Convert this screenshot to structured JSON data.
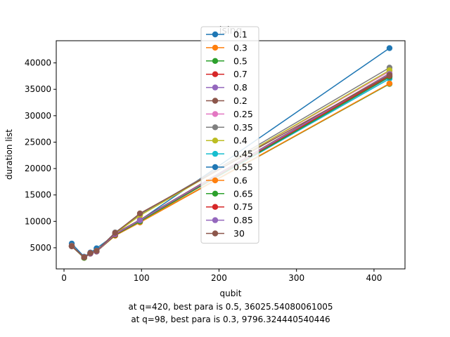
{
  "chart_data": {
    "type": "line",
    "title": "ising",
    "xlabel": "qubit",
    "ylabel": "duration list",
    "xlim": [
      -10,
      440
    ],
    "ylim": [
      1000,
      44200
    ],
    "xticks": [
      0,
      100,
      200,
      300,
      400
    ],
    "yticks": [
      5000,
      10000,
      15000,
      20000,
      25000,
      30000,
      35000,
      40000
    ],
    "grid": false,
    "legend_position": "top-center",
    "x": [
      10,
      26,
      34,
      42,
      66,
      98,
      420
    ],
    "series": [
      {
        "name": "0.1",
        "color": "#1f77b4",
        "values": [
          5800,
          3300,
          4100,
          4900,
          7500,
          10200,
          42800
        ]
      },
      {
        "name": "0.3",
        "color": "#ff7f0e",
        "values": [
          5300,
          3100,
          3900,
          4300,
          7300,
          9800,
          36050
        ]
      },
      {
        "name": "0.5",
        "color": "#2ca02c",
        "values": [
          5300,
          3100,
          3900,
          4300,
          7400,
          9900,
          36025
        ]
      },
      {
        "name": "0.7",
        "color": "#d62728",
        "values": [
          5300,
          3200,
          3900,
          4300,
          7500,
          10100,
          37500
        ]
      },
      {
        "name": "0.8",
        "color": "#9467bd",
        "values": [
          5300,
          3200,
          3900,
          4300,
          7600,
          10200,
          37800
        ]
      },
      {
        "name": "0.2",
        "color": "#8c564b",
        "values": [
          5400,
          3200,
          4000,
          4400,
          7700,
          10300,
          38000
        ]
      },
      {
        "name": "0.25",
        "color": "#e377c2",
        "values": [
          5300,
          3200,
          4000,
          4400,
          7800,
          11200,
          38400
        ]
      },
      {
        "name": "0.35",
        "color": "#7f7f7f",
        "values": [
          5400,
          3200,
          4000,
          4400,
          7900,
          11300,
          39100
        ]
      },
      {
        "name": "0.4",
        "color": "#bcbd22",
        "values": [
          5300,
          3200,
          3900,
          4400,
          7700,
          11100,
          38600
        ]
      },
      {
        "name": "0.45",
        "color": "#17becf",
        "values": [
          5300,
          3200,
          3900,
          4300,
          7500,
          10100,
          37000
        ]
      },
      {
        "name": "0.55",
        "color": "#1f77b4",
        "values": [
          5300,
          3200,
          3900,
          4300,
          7400,
          10000,
          37300
        ]
      },
      {
        "name": "0.6",
        "color": "#ff7f0e",
        "values": [
          5300,
          3100,
          3900,
          4300,
          7300,
          9900,
          36100
        ]
      },
      {
        "name": "0.65",
        "color": "#2ca02c",
        "values": [
          5300,
          3100,
          3900,
          4300,
          7400,
          10000,
          37400
        ]
      },
      {
        "name": "0.75",
        "color": "#d62728",
        "values": [
          5300,
          3200,
          3900,
          4300,
          7500,
          10200,
          37600
        ]
      },
      {
        "name": "0.85",
        "color": "#9467bd",
        "values": [
          5300,
          3200,
          3900,
          4300,
          7600,
          10200,
          37900
        ]
      },
      {
        "name": "30",
        "color": "#8c564b",
        "values": [
          5300,
          3200,
          4000,
          4400,
          7800,
          11500,
          37700
        ]
      }
    ],
    "annotations": [
      "at q=420, best para is 0.5, 36025.54080061005",
      "at q=98, best para is 0.3, 9796.324440540446"
    ]
  }
}
